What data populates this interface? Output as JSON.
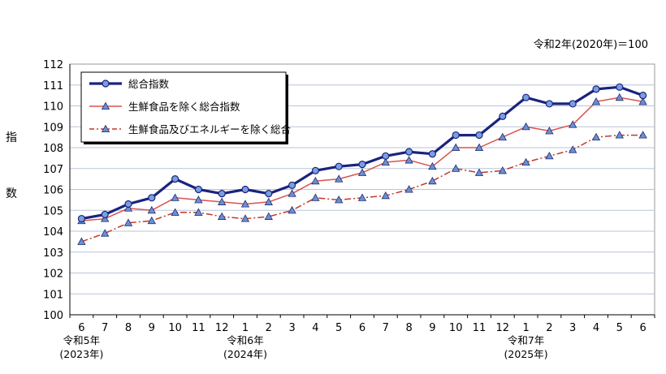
{
  "chart_data": {
    "type": "line",
    "note": "令和2年(2020年)＝100",
    "ylabel": [
      "指",
      "数"
    ],
    "ylim": [
      100,
      112
    ],
    "yticks": [
      100,
      101,
      102,
      103,
      104,
      105,
      106,
      107,
      108,
      109,
      110,
      111,
      112
    ],
    "grid": true,
    "legend_position": "top-left",
    "categories": [
      "6",
      "7",
      "8",
      "9",
      "10",
      "11",
      "12",
      "1",
      "2",
      "3",
      "4",
      "5",
      "6",
      "7",
      "8",
      "9",
      "10",
      "11",
      "12",
      "1",
      "2",
      "3",
      "4",
      "5",
      "6"
    ],
    "year_labels": [
      {
        "index": 0,
        "era": "令和5年",
        "year": "(2023年)"
      },
      {
        "index": 7,
        "era": "令和6年",
        "year": "(2024年)"
      },
      {
        "index": 19,
        "era": "令和7年",
        "year": "(2025年)"
      }
    ],
    "series": [
      {
        "name": "総合指数",
        "color": "#1a237e",
        "marker": "circle",
        "dash": "solid",
        "values": [
          104.6,
          104.8,
          105.3,
          105.6,
          106.5,
          106.0,
          105.8,
          106.0,
          105.8,
          106.2,
          106.9,
          107.1,
          107.2,
          107.6,
          107.8,
          107.7,
          108.6,
          108.6,
          109.5,
          110.4,
          110.1,
          110.1,
          110.8,
          110.9,
          110.5
        ]
      },
      {
        "name": "生鮮食品を除く総合指数",
        "color": "#d9534f",
        "marker": "triangle",
        "dash": "solid",
        "values": [
          104.5,
          104.6,
          105.1,
          105.0,
          105.6,
          105.5,
          105.4,
          105.3,
          105.4,
          105.8,
          106.4,
          106.5,
          106.8,
          107.3,
          107.4,
          107.1,
          108.0,
          108.0,
          108.5,
          109.0,
          108.8,
          109.1,
          110.2,
          110.4,
          110.2
        ]
      },
      {
        "name": "生鮮食品及びエネルギーを除く総合",
        "color": "#c0392b",
        "marker": "triangle",
        "dash": "dashdot",
        "values": [
          103.5,
          103.9,
          104.4,
          104.5,
          104.9,
          104.9,
          104.7,
          104.6,
          104.7,
          105.0,
          105.6,
          105.5,
          105.6,
          105.7,
          106.0,
          106.4,
          107.0,
          106.8,
          106.9,
          107.3,
          107.6,
          107.9,
          108.5,
          108.6,
          108.6
        ]
      }
    ]
  }
}
